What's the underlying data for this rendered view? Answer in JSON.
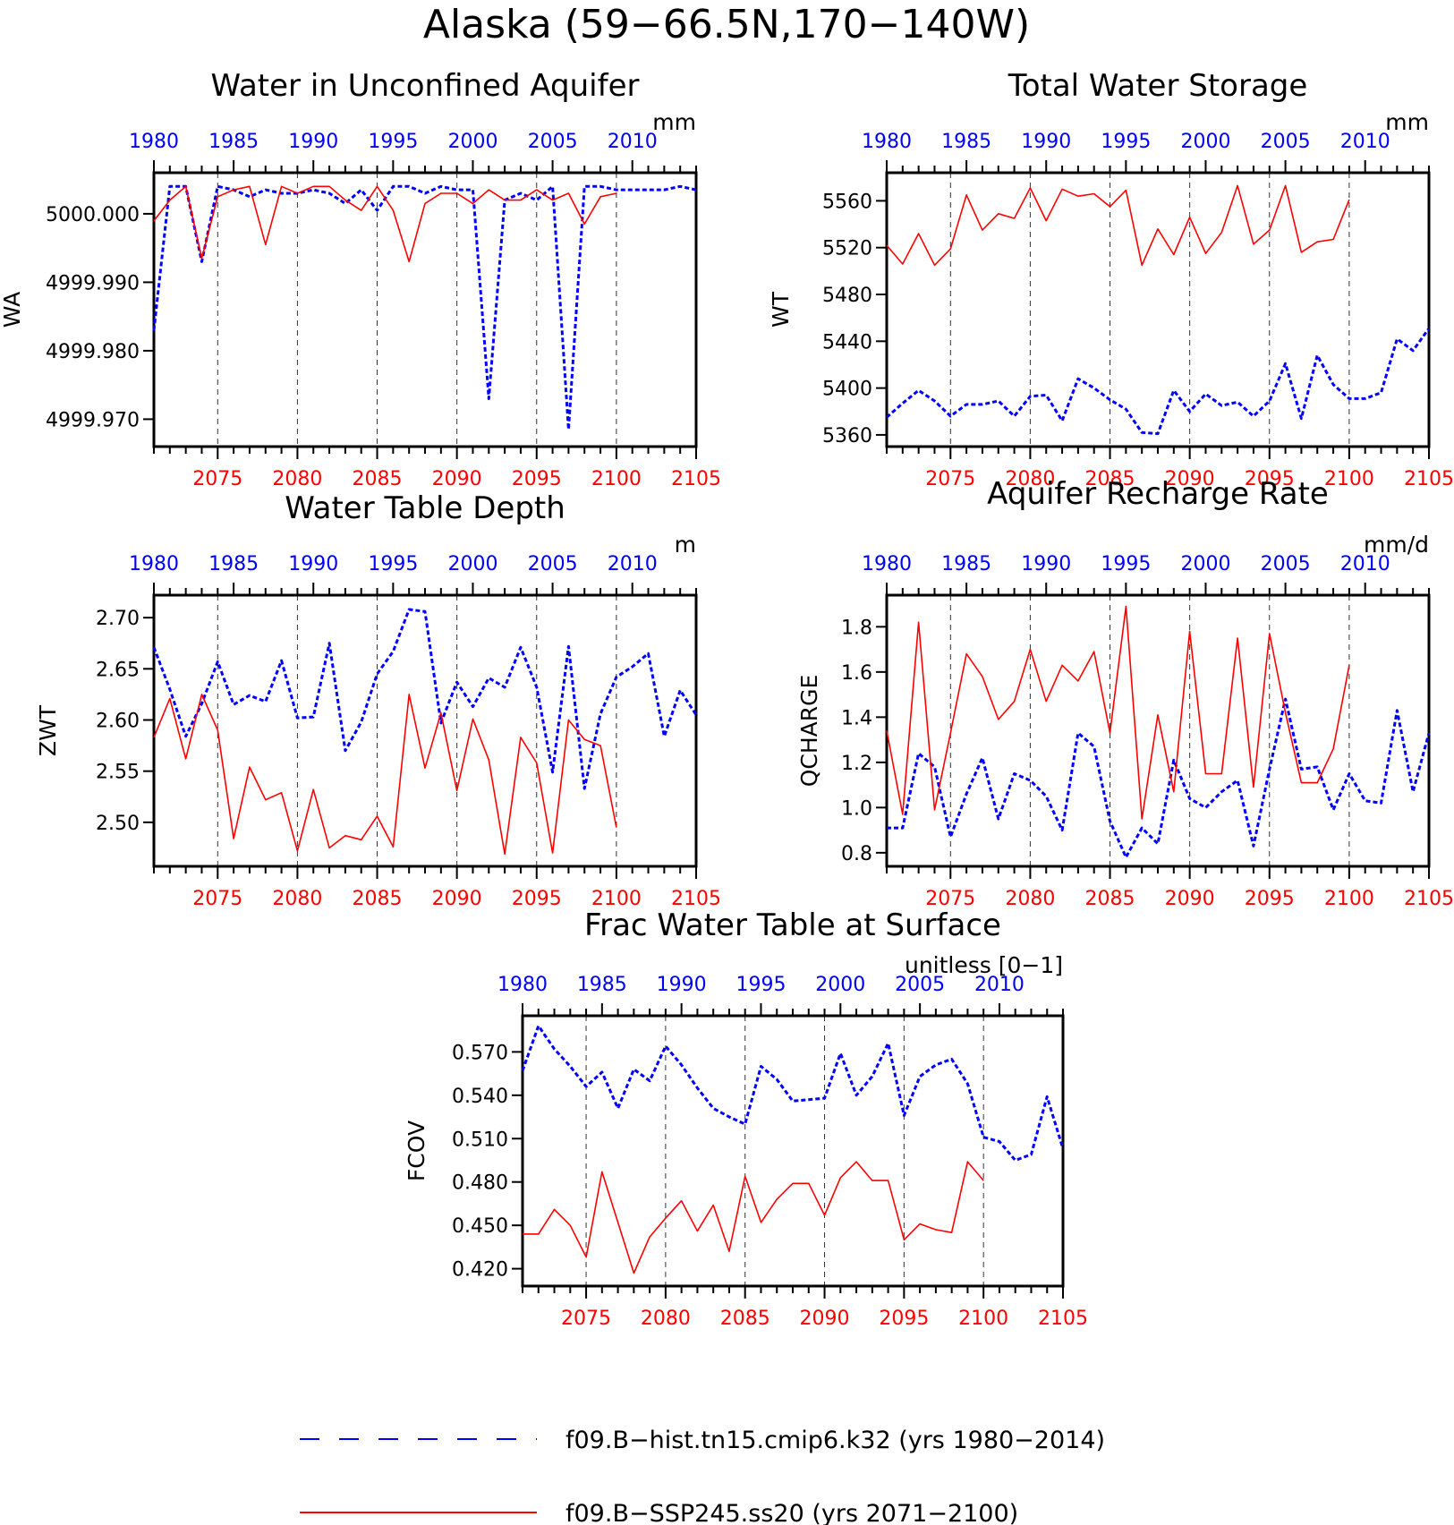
{
  "main_title": "Alaska (59−66.5N,170−140W)",
  "colors": {
    "hist": "#0000ff",
    "ssp": "#ff0000",
    "axis": "#000000"
  },
  "top_axis_labels": [
    "1980",
    "1985",
    "1990",
    "1995",
    "2000",
    "2005",
    "2010"
  ],
  "bottom_axis_labels": [
    "2075",
    "2080",
    "2085",
    "2090",
    "2095",
    "2100",
    "2105"
  ],
  "legend": [
    {
      "name": "f09.B−hist.tn15.cmip6.k32 (yrs 1980−2014)",
      "color": "#0000ff",
      "style": "dashed"
    },
    {
      "name": "f09.B−SSP245.ss20 (yrs 2071−2100)",
      "color": "#ff0000",
      "style": "solid"
    }
  ],
  "chart_data": [
    {
      "type": "line",
      "title": "Water in Unconfined Aquifer",
      "units": "mm",
      "ylabel": "WA",
      "ylim": [
        4999.966,
        5000.006
      ],
      "yticks": [
        4999.97,
        4999.98,
        4999.99,
        5000.0
      ],
      "ytick_labels": [
        "4999.970",
        "4999.980",
        "4999.990",
        "5000.000"
      ],
      "xlim_bottom": [
        2071,
        2105
      ],
      "xlim_top": [
        1980,
        2014
      ],
      "series": [
        {
          "name": "f09.B−hist.tn15.cmip6.k32 (yrs 1980−2014)",
          "x": [
            1980,
            1981,
            1982,
            1983,
            1984,
            1985,
            1986,
            1987,
            1988,
            1989,
            1990,
            1991,
            1992,
            1993,
            1994,
            1995,
            1996,
            1997,
            1998,
            1999,
            2000,
            2001,
            2002,
            2003,
            2004,
            2005,
            2006,
            2007,
            2008,
            2009,
            2010,
            2011,
            2012,
            2013,
            2014
          ],
          "values": [
            4999.983,
            5000.004,
            5000.004,
            4999.993,
            5000.004,
            5000.0035,
            5000.0025,
            5000.0035,
            5000.003,
            5000.003,
            5000.0035,
            5000.003,
            5000.0015,
            5000.0035,
            5000.0005,
            5000.004,
            5000.004,
            5000.003,
            5000.004,
            5000.0035,
            5000.0035,
            4999.973,
            5000.002,
            5000.003,
            5000.002,
            5000.004,
            4999.9685,
            5000.004,
            5000.004,
            5000.0035,
            5000.0035,
            5000.0035,
            5000.0035,
            5000.004,
            5000.0035
          ]
        },
        {
          "name": "f09.B−SSP245.ss20 (yrs 2071−2100)",
          "x": [
            2071,
            2072,
            2073,
            2074,
            2075,
            2076,
            2077,
            2078,
            2079,
            2080,
            2081,
            2082,
            2083,
            2084,
            2085,
            2086,
            2087,
            2088,
            2089,
            2090,
            2091,
            2092,
            2093,
            2094,
            2095,
            2096,
            2097,
            2098,
            2099,
            2100
          ],
          "values": [
            4999.999,
            5000.002,
            5000.004,
            4999.9935,
            5000.0025,
            5000.0035,
            5000.004,
            4999.9955,
            5000.004,
            5000.003,
            5000.004,
            5000.004,
            5000.002,
            5000.0005,
            5000.004,
            5000.0005,
            4999.993,
            5000.0015,
            5000.003,
            5000.003,
            5000.0015,
            5000.0035,
            5000.002,
            5000.002,
            5000.0035,
            5000.002,
            5000.003,
            4999.9985,
            5000.0025,
            5000.003
          ]
        }
      ]
    },
    {
      "type": "line",
      "title": "Total Water Storage",
      "units": "mm",
      "ylabel": "WT",
      "ylim": [
        5350,
        5584
      ],
      "yticks": [
        5360,
        5400,
        5440,
        5480,
        5520,
        5560
      ],
      "ytick_labels": [
        "5360",
        "5400",
        "5440",
        "5480",
        "5520",
        "5560"
      ],
      "xlim_bottom": [
        2071,
        2105
      ],
      "xlim_top": [
        1980,
        2014
      ],
      "series": [
        {
          "name": "f09.B−hist.tn15.cmip6.k32 (yrs 1980−2014)",
          "x": [
            1980,
            1981,
            1982,
            1983,
            1984,
            1985,
            1986,
            1987,
            1988,
            1989,
            1990,
            1991,
            1992,
            1993,
            1994,
            1995,
            1996,
            1997,
            1998,
            1999,
            2000,
            2001,
            2002,
            2003,
            2004,
            2005,
            2006,
            2007,
            2008,
            2009,
            2010,
            2011,
            2012,
            2013,
            2014
          ],
          "values": [
            5375,
            5387,
            5398,
            5389,
            5376,
            5386,
            5386,
            5389,
            5376,
            5393,
            5394,
            5372,
            5408,
            5400,
            5390,
            5382,
            5362,
            5361,
            5398,
            5380,
            5395,
            5385,
            5388,
            5376,
            5389,
            5421,
            5374,
            5428,
            5403,
            5391,
            5391,
            5396,
            5442,
            5432,
            5451
          ]
        },
        {
          "name": "f09.B−SSP245.ss20 (yrs 2071−2100)",
          "x": [
            2071,
            2072,
            2073,
            2074,
            2075,
            2076,
            2077,
            2078,
            2079,
            2080,
            2081,
            2082,
            2083,
            2084,
            2085,
            2086,
            2087,
            2088,
            2089,
            2090,
            2091,
            2092,
            2093,
            2094,
            2095,
            2096,
            2097,
            2098,
            2099,
            2100
          ],
          "values": [
            5522,
            5506,
            5532,
            5505,
            5519,
            5565,
            5535,
            5549,
            5545,
            5571,
            5543,
            5570,
            5564,
            5566,
            5555,
            5569,
            5505,
            5536,
            5514,
            5546,
            5515,
            5533,
            5573,
            5523,
            5535,
            5573,
            5516,
            5525,
            5527,
            5561
          ]
        }
      ]
    },
    {
      "type": "line",
      "title": "Water Table Depth",
      "units": "m",
      "ylabel": "ZWT",
      "ylim": [
        2.457,
        2.722
      ],
      "yticks": [
        2.5,
        2.55,
        2.6,
        2.65,
        2.7
      ],
      "ytick_labels": [
        "2.50",
        "2.55",
        "2.60",
        "2.65",
        "2.70"
      ],
      "xlim_bottom": [
        2071,
        2105
      ],
      "xlim_top": [
        1980,
        2014
      ],
      "series": [
        {
          "name": "f09.B−hist.tn15.cmip6.k32 (yrs 1980−2014)",
          "x": [
            1980,
            1981,
            1982,
            1983,
            1984,
            1985,
            1986,
            1987,
            1988,
            1989,
            1990,
            1991,
            1992,
            1993,
            1994,
            1995,
            1996,
            1997,
            1998,
            1999,
            2000,
            2001,
            2002,
            2003,
            2004,
            2005,
            2006,
            2007,
            2008,
            2009,
            2010,
            2011,
            2012,
            2013,
            2014
          ],
          "values": [
            2.671,
            2.63,
            2.584,
            2.616,
            2.657,
            2.615,
            2.624,
            2.618,
            2.658,
            2.602,
            2.603,
            2.675,
            2.57,
            2.598,
            2.645,
            2.667,
            2.708,
            2.706,
            2.597,
            2.637,
            2.613,
            2.641,
            2.632,
            2.671,
            2.632,
            2.549,
            2.672,
            2.533,
            2.606,
            2.642,
            2.652,
            2.665,
            2.584,
            2.629,
            2.605
          ]
        },
        {
          "name": "f09.B−SSP245.ss20 (yrs 2071−2100)",
          "x": [
            2071,
            2072,
            2073,
            2074,
            2075,
            2076,
            2077,
            2078,
            2079,
            2080,
            2081,
            2082,
            2083,
            2084,
            2085,
            2086,
            2087,
            2088,
            2089,
            2090,
            2091,
            2092,
            2093,
            2094,
            2095,
            2096,
            2097,
            2098,
            2099,
            2100
          ],
          "values": [
            2.583,
            2.621,
            2.562,
            2.625,
            2.59,
            2.484,
            2.554,
            2.522,
            2.529,
            2.472,
            2.532,
            2.475,
            2.487,
            2.483,
            2.506,
            2.476,
            2.625,
            2.553,
            2.607,
            2.531,
            2.601,
            2.561,
            2.469,
            2.583,
            2.558,
            2.47,
            2.6,
            2.581,
            2.575,
            2.495
          ]
        }
      ]
    },
    {
      "type": "line",
      "title": "Aquifer Recharge Rate",
      "units": "mm/d",
      "ylabel": "QCHARGE",
      "ylim": [
        0.74,
        1.94
      ],
      "yticks": [
        0.8,
        1.0,
        1.2,
        1.4,
        1.6,
        1.8
      ],
      "ytick_labels": [
        "0.8",
        "1.0",
        "1.2",
        "1.4",
        "1.6",
        "1.8"
      ],
      "xlim_bottom": [
        2071,
        2105
      ],
      "xlim_top": [
        1980,
        2014
      ],
      "series": [
        {
          "name": "f09.B−hist.tn15.cmip6.k32 (yrs 1980−2014)",
          "x": [
            1980,
            1981,
            1982,
            1983,
            1984,
            1985,
            1986,
            1987,
            1988,
            1989,
            1990,
            1991,
            1992,
            1993,
            1994,
            1995,
            1996,
            1997,
            1998,
            1999,
            2000,
            2001,
            2002,
            2003,
            2004,
            2005,
            2006,
            2007,
            2008,
            2009,
            2010,
            2011,
            2012,
            2013,
            2014
          ],
          "values": [
            0.91,
            0.91,
            1.24,
            1.18,
            0.87,
            1.06,
            1.22,
            0.95,
            1.15,
            1.12,
            1.05,
            0.9,
            1.33,
            1.27,
            0.94,
            0.78,
            0.91,
            0.84,
            1.21,
            1.04,
            1.0,
            1.07,
            1.12,
            0.83,
            1.17,
            1.48,
            1.17,
            1.18,
            0.99,
            1.15,
            1.03,
            1.02,
            1.43,
            1.07,
            1.33
          ]
        },
        {
          "name": "f09.B−SSP245.ss20 (yrs 2071−2100)",
          "x": [
            2071,
            2072,
            2073,
            2074,
            2075,
            2076,
            2077,
            2078,
            2079,
            2080,
            2081,
            2082,
            2083,
            2084,
            2085,
            2086,
            2087,
            2088,
            2089,
            2090,
            2091,
            2092,
            2093,
            2094,
            2095,
            2096,
            2097,
            2098,
            2099,
            2100
          ],
          "values": [
            1.34,
            0.97,
            1.82,
            0.99,
            1.33,
            1.68,
            1.58,
            1.39,
            1.47,
            1.7,
            1.47,
            1.63,
            1.56,
            1.69,
            1.33,
            1.89,
            0.95,
            1.41,
            1.07,
            1.78,
            1.15,
            1.15,
            1.75,
            1.09,
            1.77,
            1.42,
            1.11,
            1.11,
            1.26,
            1.63
          ]
        }
      ]
    },
    {
      "type": "line",
      "title": "Frac Water Table at Surface",
      "units": "unitless [0−1]",
      "ylabel": "FCOV",
      "ylim": [
        0.408,
        0.595
      ],
      "yticks": [
        0.42,
        0.45,
        0.48,
        0.51,
        0.54,
        0.57
      ],
      "ytick_labels": [
        "0.420",
        "0.450",
        "0.480",
        "0.510",
        "0.540",
        "0.570"
      ],
      "xlim_bottom": [
        2071,
        2105
      ],
      "xlim_top": [
        1980,
        2014
      ],
      "series": [
        {
          "name": "f09.B−hist.tn15.cmip6.k32 (yrs 1980−2014)",
          "x": [
            1980,
            1981,
            1982,
            1983,
            1984,
            1985,
            1986,
            1987,
            1988,
            1989,
            1990,
            1991,
            1992,
            1993,
            1994,
            1995,
            1996,
            1997,
            1998,
            1999,
            2000,
            2001,
            2002,
            2003,
            2004,
            2005,
            2006,
            2007,
            2008,
            2009,
            2010,
            2011,
            2012,
            2013,
            2014
          ],
          "values": [
            0.557,
            0.588,
            0.572,
            0.56,
            0.546,
            0.556,
            0.531,
            0.558,
            0.55,
            0.574,
            0.561,
            0.545,
            0.531,
            0.525,
            0.52,
            0.56,
            0.551,
            0.536,
            0.537,
            0.538,
            0.569,
            0.54,
            0.553,
            0.576,
            0.526,
            0.553,
            0.561,
            0.565,
            0.548,
            0.511,
            0.508,
            0.495,
            0.499,
            0.539,
            0.503
          ]
        },
        {
          "name": "f09.B−SSP245.ss20 (yrs 2071−2100)",
          "x": [
            2071,
            2072,
            2073,
            2074,
            2075,
            2076,
            2077,
            2078,
            2079,
            2080,
            2081,
            2082,
            2083,
            2084,
            2085,
            2086,
            2087,
            2088,
            2089,
            2090,
            2091,
            2092,
            2093,
            2094,
            2095,
            2096,
            2097,
            2098,
            2099,
            2100
          ],
          "values": [
            0.444,
            0.444,
            0.461,
            0.45,
            0.428,
            0.487,
            0.452,
            0.417,
            0.442,
            0.455,
            0.467,
            0.446,
            0.464,
            0.432,
            0.484,
            0.452,
            0.468,
            0.479,
            0.479,
            0.457,
            0.483,
            0.494,
            0.481,
            0.481,
            0.44,
            0.451,
            0.447,
            0.445,
            0.494,
            0.481
          ]
        }
      ]
    }
  ]
}
